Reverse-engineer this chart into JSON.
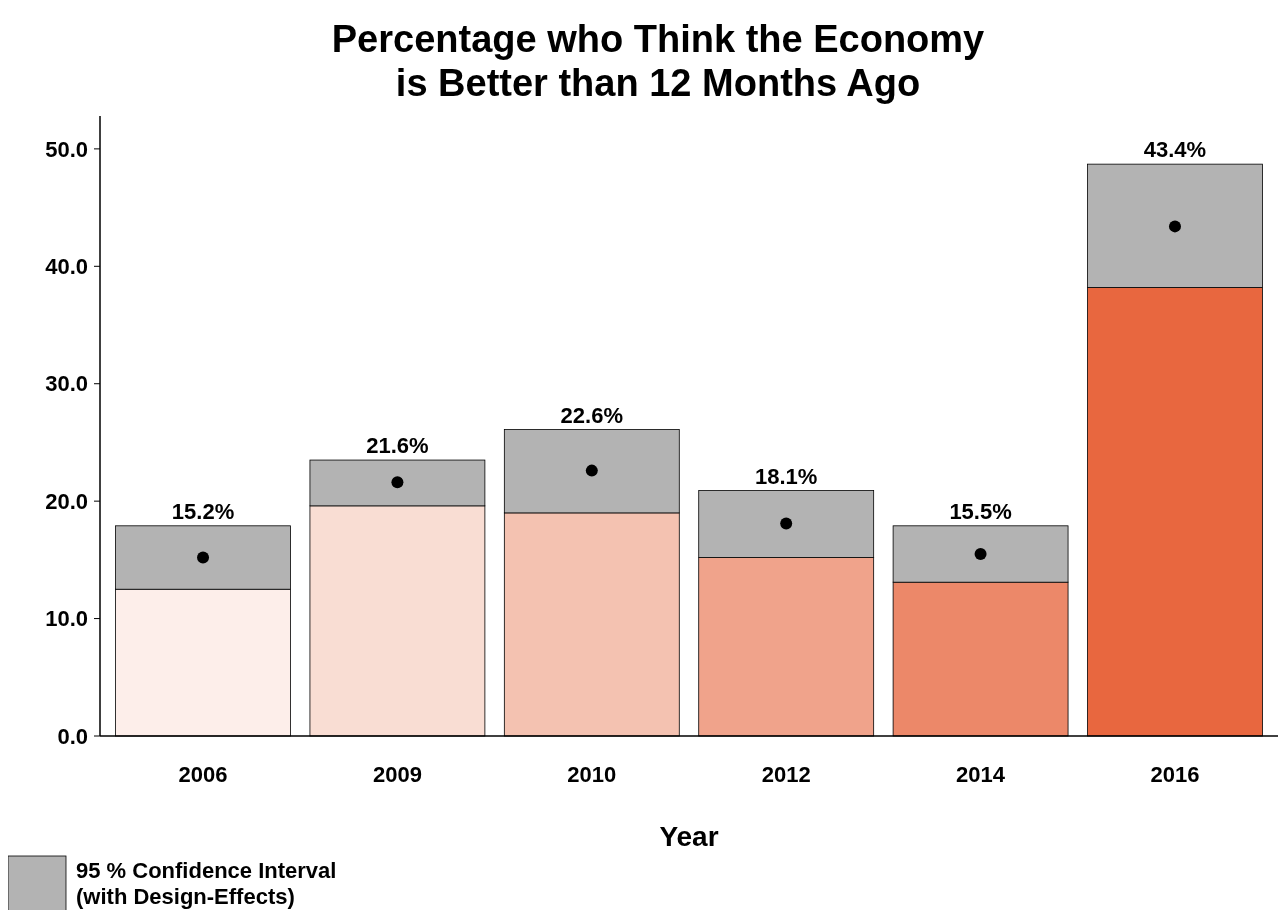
{
  "chart_data": {
    "type": "bar",
    "title": "Percentage who Think the Economy\nis Better than 12 Months Ago",
    "xlabel": "Year",
    "categories": [
      "2006",
      "2009",
      "2010",
      "2012",
      "2014",
      "2016"
    ],
    "stacked": true,
    "ylim": [
      0,
      52.8
    ],
    "yticks": [
      {
        "value": 0,
        "label": "0.0"
      },
      {
        "value": 10,
        "label": "10.0"
      },
      {
        "value": 20,
        "label": "20.0"
      },
      {
        "value": 30,
        "label": "30.0"
      },
      {
        "value": 40,
        "label": "40.0"
      },
      {
        "value": 50,
        "label": "50.0"
      }
    ],
    "legend": "bottom left",
    "series": [
      {
        "colors": [
          "#fdeeea",
          "#f9ddd3",
          "#f4c2b1",
          "#f0a38b",
          "#ec8869",
          "#e8673f"
        ],
        "values": [
          12.5,
          19.6,
          19.0,
          15.2,
          13.1,
          38.2
        ]
      },
      {
        "name": "95 % Confidence Interval\n(with Design-Effects)",
        "color": "#b3b3b3",
        "values": [
          5.4,
          3.9,
          7.1,
          5.7,
          4.8,
          10.5
        ]
      },
      {
        "type": "scatter",
        "color": "#000000",
        "marker": "circle",
        "values": [
          15.2,
          21.6,
          22.6,
          18.1,
          15.5,
          43.4
        ],
        "value_labels": [
          "15.2%",
          "21.6%",
          "22.6%",
          "18.1%",
          "15.5%",
          "43.4%"
        ]
      }
    ]
  }
}
